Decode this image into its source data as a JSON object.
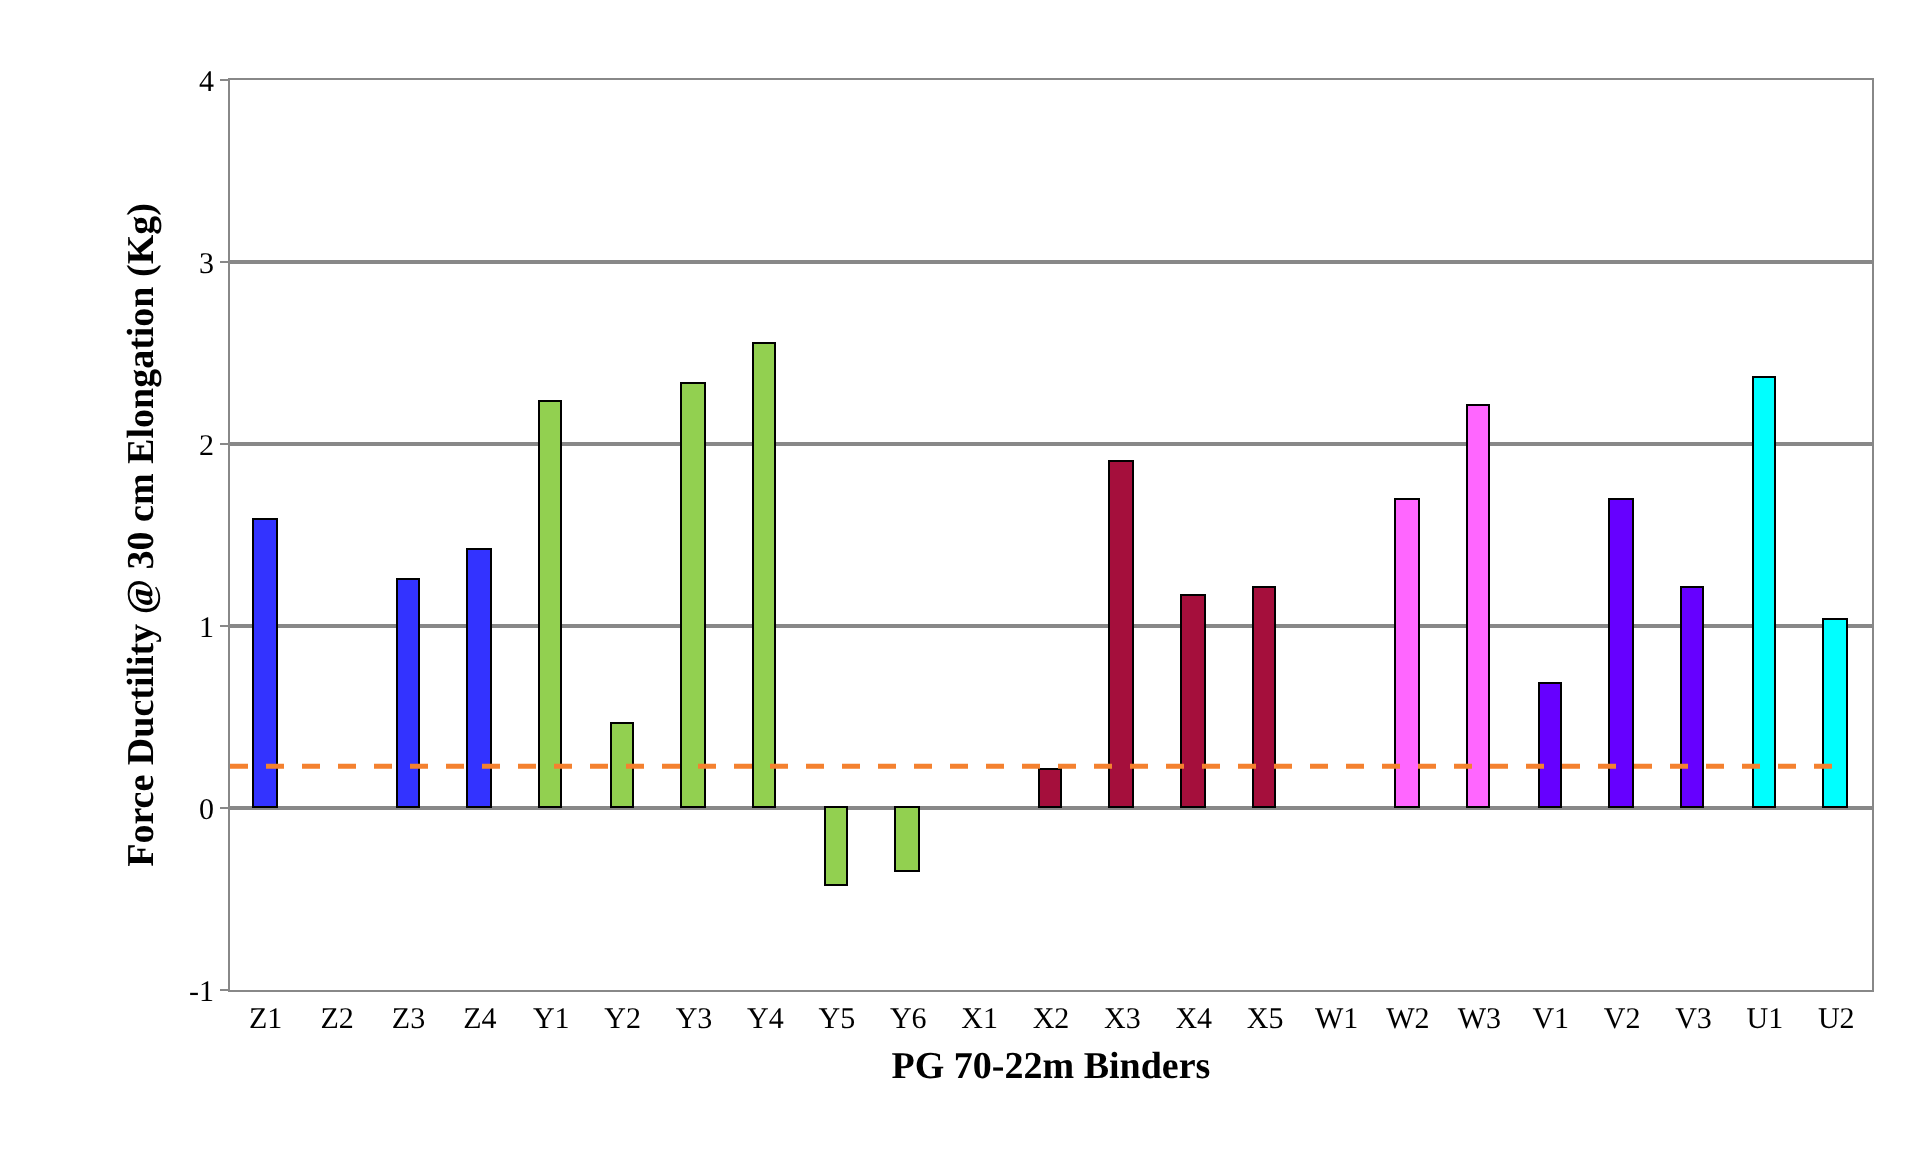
{
  "chart_data": {
    "type": "bar",
    "xlabel": "PG 70-22m Binders",
    "ylabel": "Force Ductility @ 30 cm Elongation (Kg)",
    "categories": [
      "Z1",
      "Z2",
      "Z3",
      "Z4",
      "Y1",
      "Y2",
      "Y3",
      "Y4",
      "Y5",
      "Y6",
      "X1",
      "X2",
      "X3",
      "X4",
      "X5",
      "W1",
      "W2",
      "W3",
      "V1",
      "V2",
      "V3",
      "U1",
      "U2"
    ],
    "values": [
      1.58,
      null,
      1.25,
      1.42,
      2.23,
      0.46,
      2.33,
      2.55,
      -0.43,
      -0.35,
      null,
      0.21,
      1.9,
      1.17,
      1.21,
      null,
      1.69,
      2.21,
      0.68,
      1.69,
      1.21,
      2.36,
      1.03
    ],
    "colors": [
      "#3333ff",
      "#3333ff",
      "#3333ff",
      "#3333ff",
      "#92d050",
      "#92d050",
      "#92d050",
      "#92d050",
      "#92d050",
      "#92d050",
      "#a50f3c",
      "#a50f3c",
      "#a50f3c",
      "#a50f3c",
      "#a50f3c",
      "#ff66ff",
      "#ff66ff",
      "#ff66ff",
      "#6600ff",
      "#6600ff",
      "#6600ff",
      "#00ffff",
      "#00ffff"
    ],
    "ylim": [
      -1,
      4
    ],
    "yticks": [
      -1,
      0,
      1,
      2,
      3,
      4
    ],
    "grid": "y",
    "ref_lines": [
      {
        "axis": "y",
        "value": 0.23,
        "color": "#f4812f",
        "line_style": "dashed"
      }
    ]
  }
}
